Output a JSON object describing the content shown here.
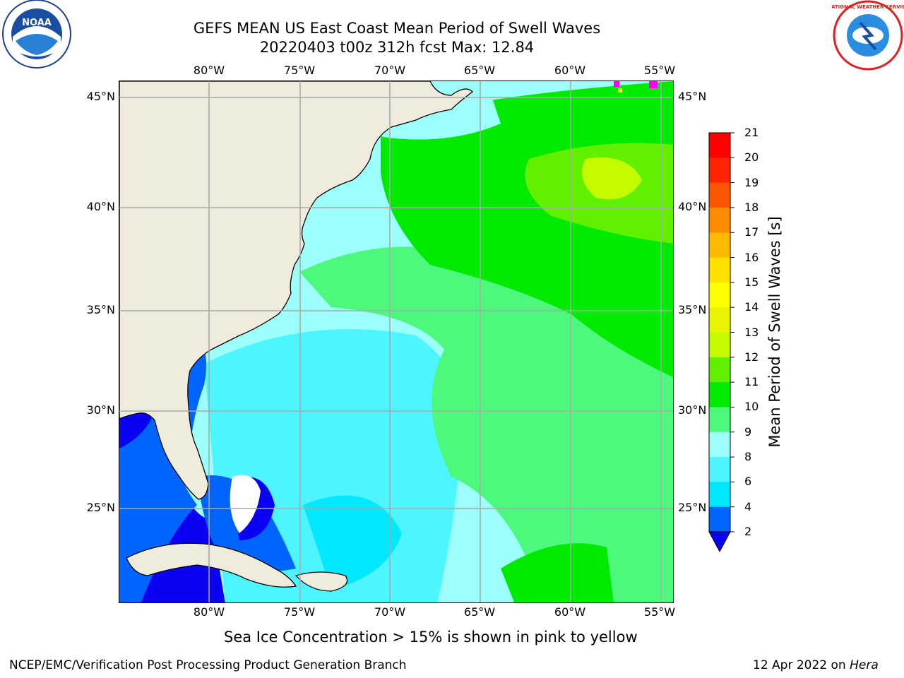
{
  "header": {
    "title_line1": "GEFS MEAN US East Coast Mean Period of Swell Waves",
    "title_line2": "20220403 t00z 312h fcst   Max: 12.84"
  },
  "logos": {
    "left": {
      "name": "noaa-logo",
      "text": "NOAA"
    },
    "right": {
      "name": "nws-logo",
      "text": "NATIONAL WEATHER SERVICE"
    }
  },
  "map": {
    "lon_labels": [
      "80°W",
      "75°W",
      "70°W",
      "65°W",
      "60°W",
      "55°W"
    ],
    "lat_labels": [
      "45°N",
      "40°N",
      "35°N",
      "30°N",
      "25°N"
    ],
    "land_color": "#efecdd",
    "ice_note": "Sea Ice Concentration > 15% is shown in pink to yellow"
  },
  "colorbar": {
    "label": "Mean Period of Swell Waves [s]",
    "ticks": [
      "2",
      "4",
      "6",
      "8",
      "9",
      "10",
      "11",
      "12",
      "13",
      "14",
      "15",
      "16",
      "17",
      "18",
      "19",
      "20",
      "21"
    ],
    "colors": [
      "#0a00f2",
      "#0064ff",
      "#00e7ff",
      "#4df5ff",
      "#9dfff9",
      "#4cf97c",
      "#00ea00",
      "#60f000",
      "#c3fa00",
      "#e9f400",
      "#ffff00",
      "#ffe100",
      "#ffba00",
      "#ff8c00",
      "#ff5500",
      "#ff2500",
      "#ff0000"
    ]
  },
  "footer": {
    "left": "NCEP/EMC/Verification Post Processing Product Generation Branch",
    "right_date": "12 Apr 2022 on ",
    "right_machine": "Hera"
  }
}
